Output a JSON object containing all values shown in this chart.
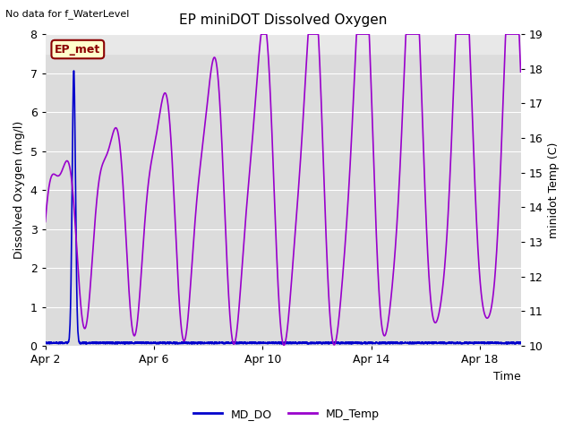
{
  "title": "EP miniDOT Dissolved Oxygen",
  "subtitle": "No data for f_WaterLevel",
  "xlabel": "Time",
  "ylabel_left": "Dissolved Oxygen (mg/l)",
  "ylabel_right": "minidot Temp (C)",
  "ylim_left": [
    0.0,
    8.0
  ],
  "ylim_right": [
    10.0,
    19.0
  ],
  "yticks_left": [
    0.0,
    1.0,
    2.0,
    3.0,
    4.0,
    5.0,
    6.0,
    7.0,
    8.0
  ],
  "yticks_right": [
    10.0,
    11.0,
    12.0,
    13.0,
    14.0,
    15.0,
    16.0,
    17.0,
    18.0,
    19.0
  ],
  "plot_bg_color": "#dcdcdc",
  "grid_color": "#ffffff",
  "legend_label_do": "MD_DO",
  "legend_label_temp": "MD_Temp",
  "do_color": "#0000cc",
  "temp_color": "#9900cc",
  "annotation_text": "EP_met",
  "xtick_days": [
    0,
    4,
    8,
    12,
    16
  ],
  "xtick_labels": [
    "Apr 2",
    "Apr 6",
    "Apr 10",
    "Apr 14",
    "Apr 18"
  ],
  "xlim": [
    0,
    17.5
  ]
}
